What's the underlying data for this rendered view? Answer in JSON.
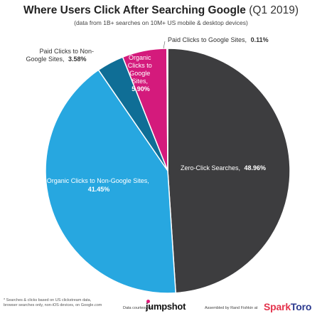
{
  "header": {
    "title": "Where Users Click After Searching Google",
    "title_period": "(Q1 2019)",
    "subtitle": "(data from 1B+ searches on 10M+ US mobile & desktop devices)"
  },
  "chart_data": {
    "type": "pie",
    "title": "Where Users Click After Searching Google (Q1 2019)",
    "subtitle": "(data from 1B+ searches on 10M+ US mobile & desktop devices)",
    "start_angle_deg": 0,
    "direction": "clockwise",
    "slices": [
      {
        "label": "Zero-Click Searches,",
        "value": 48.96,
        "value_text": "48.96%",
        "color": "#3d3d3f"
      },
      {
        "label": "Organic Clicks to Non-Google Sites,",
        "value": 41.45,
        "value_text": "41.45%",
        "color": "#27a7e0"
      },
      {
        "label": "Paid Clicks to Non-Google Sites,",
        "value": 3.58,
        "value_text": "3.58%",
        "color": "#0f6e96"
      },
      {
        "label": "Organic Clicks to Google Sites,",
        "value": 5.9,
        "value_text": "5.90%",
        "color": "#d41a7c"
      },
      {
        "label": "Paid Clicks to Google Sites,",
        "value": 0.11,
        "value_text": "0.11%",
        "color": "#5a2a86"
      }
    ]
  },
  "labels": {
    "zero_click": {
      "text": "Zero-Click Searches,",
      "value": "48.96%"
    },
    "organic_non_google": {
      "line1": "Organic Clicks to Non-Google Sites,",
      "value": "41.45%"
    },
    "paid_non_google": {
      "line1": "Paid Clicks to Non-",
      "line2": "Google Sites,",
      "value": "3.58%"
    },
    "organic_google": {
      "line1": "Organic",
      "line2": "Clicks to",
      "line3": "Google",
      "line4": "Sites,",
      "value": "5.90%"
    },
    "paid_google": {
      "text": "Paid Clicks to Google Sites,",
      "value": "0.11%"
    }
  },
  "footer": {
    "footnote_line1": "* Searches & clicks based on US clickstream data,",
    "footnote_line2": "browser searches only, non-iOS devices, on Google.com",
    "courtesy": "Data courtesy of",
    "jumpshot": "jumpshot",
    "assembled": "Assembled by Rand Fishkin at",
    "sparktoro_a": "Spark",
    "sparktoro_b": "Toro"
  }
}
